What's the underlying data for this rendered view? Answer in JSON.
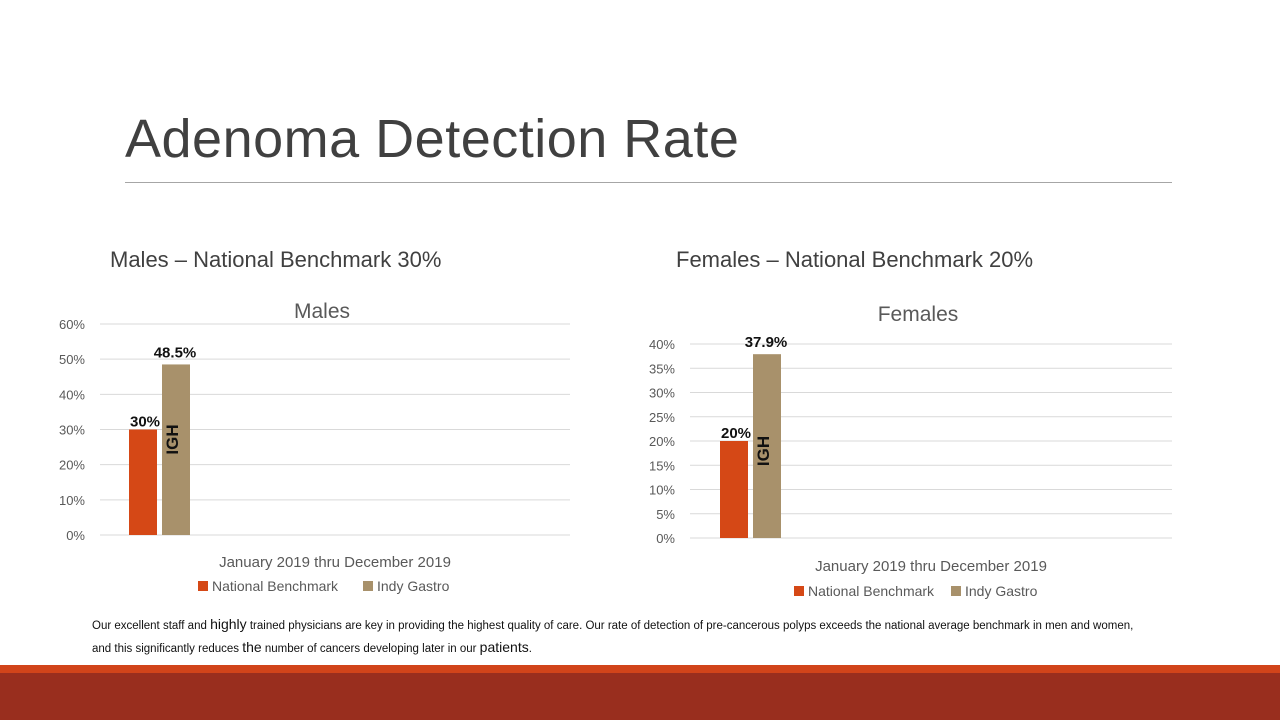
{
  "slide": {
    "title": "Adenoma Detection Rate",
    "males_label": "Males – National Benchmark 30%",
    "females_label": "Females – National Benchmark 20%",
    "footnote_parts": [
      {
        "text": "Our excellent staff and ",
        "big": false
      },
      {
        "text": "highly",
        "big": true
      },
      {
        "text": " trained physicians are key in providing the highest quality of care.  Our rate of detection of pre-cancerous polyps exceeds the national average benchmark in men and women, and this significantly reduces ",
        "big": false
      },
      {
        "text": "the",
        "big": true
      },
      {
        "text": " number of cancers developing later in our ",
        "big": false
      },
      {
        "text": "patients",
        "big": true
      },
      {
        "text": ".",
        "big": false
      }
    ]
  },
  "colors": {
    "national": "#d54816",
    "indy": "#a8916b",
    "grid": "#d9d9d9",
    "axis_text": "#595959",
    "footer_accent": "#d1441a",
    "footer_dark": "#992e1e"
  },
  "chart_data": [
    {
      "type": "bar",
      "title": "Males",
      "categories": [
        "January 2019 thru December 2019"
      ],
      "series": [
        {
          "name": "National Benchmark",
          "values": [
            30
          ],
          "data_label": "30%"
        },
        {
          "name": "Indy Gastro",
          "values": [
            48.5
          ],
          "data_label": "48.5%",
          "bar_text": "IGH"
        }
      ],
      "yticks": [
        "0%",
        "10%",
        "20%",
        "30%",
        "40%",
        "50%",
        "60%"
      ],
      "ylim": [
        0,
        60
      ],
      "grid": true,
      "legend": "bottom"
    },
    {
      "type": "bar",
      "title": "Females",
      "categories": [
        "January 2019 thru December 2019"
      ],
      "series": [
        {
          "name": "National Benchmark",
          "values": [
            20
          ],
          "data_label": "20%"
        },
        {
          "name": "Indy Gastro",
          "values": [
            37.9
          ],
          "data_label": "37.9%",
          "bar_text": "IGH"
        }
      ],
      "yticks": [
        "0%",
        "5%",
        "10%",
        "15%",
        "20%",
        "25%",
        "30%",
        "35%",
        "40%"
      ],
      "ylim": [
        0,
        40
      ],
      "grid": true,
      "legend": "bottom"
    }
  ]
}
